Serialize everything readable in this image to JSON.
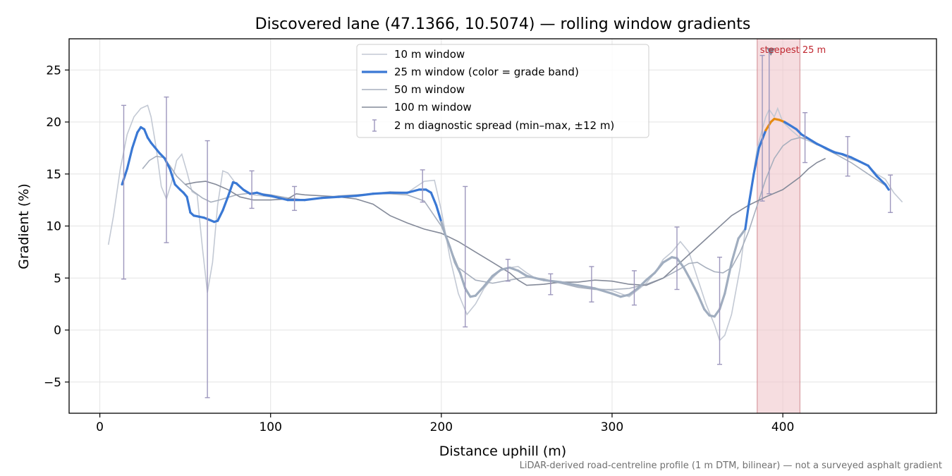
{
  "chart_data": {
    "type": "line",
    "title": "Discovered lane (47.1366, 10.5074) — rolling window gradients",
    "xlabel": "Distance uphill (m)",
    "ylabel": "Gradient (%)",
    "xlim": [
      -18,
      490
    ],
    "ylim": [
      -8,
      28
    ],
    "xticks": [
      0,
      100,
      200,
      300,
      400
    ],
    "xtick_labels": [
      "0",
      "100",
      "200",
      "300",
      "400"
    ],
    "yticks": [
      -5,
      0,
      5,
      10,
      15,
      20,
      25
    ],
    "ytick_labels": [
      "−5",
      "0",
      "5",
      "10",
      "15",
      "20",
      "25"
    ],
    "grid": true,
    "legend_position": "upper center",
    "note": "LiDAR-derived road-centreline profile (1 m DTM, bilinear) — not a surveyed asphalt gradient",
    "annotation": {
      "label": "steepest 25 m",
      "x_range": [
        385,
        410
      ],
      "marker_x": 393,
      "marker_y": 26.7
    },
    "colors": {
      "w10": "#c3c9d4",
      "w25": "#3a78d4",
      "w25_grey": "#a0adbf",
      "w25_steepest": "#e58a10",
      "w50": "#a7afbd",
      "w100": "#848a99",
      "errorbar": "#9d97bd",
      "band": "#f0c7cb",
      "band_edge": "#d28a90",
      "annotation": "#c0262f"
    },
    "series": [
      {
        "name": "10 m window",
        "x": [
          5,
          8,
          12,
          16,
          20,
          24,
          28,
          30,
          33,
          36,
          39,
          42,
          45,
          48,
          51,
          54,
          57,
          60,
          63,
          66,
          69,
          72,
          75,
          80,
          85,
          90,
          100,
          110,
          120,
          130,
          140,
          150,
          160,
          170,
          180,
          190,
          196,
          200,
          205,
          210,
          215,
          220,
          225,
          230,
          235,
          240,
          245,
          250,
          255,
          260,
          270,
          280,
          290,
          300,
          310,
          320,
          325,
          330,
          335,
          340,
          345,
          350,
          355,
          360,
          363,
          366,
          370,
          375,
          380,
          385,
          390,
          392,
          395,
          397,
          400,
          405,
          410,
          415,
          420,
          425,
          430,
          435,
          440,
          445,
          450,
          455,
          460,
          465,
          470
        ],
        "y": [
          8.2,
          11,
          15.5,
          18.8,
          20.5,
          21.3,
          21.6,
          20.5,
          17.5,
          13.8,
          12.6,
          14.2,
          16.3,
          16.9,
          15.2,
          13.3,
          13.0,
          8.0,
          3.6,
          6.5,
          12.0,
          15.3,
          15.1,
          14.0,
          13.3,
          13.0,
          12.8,
          12.6,
          12.5,
          12.7,
          12.8,
          12.9,
          13.1,
          13.3,
          13.2,
          14.3,
          14.4,
          11.5,
          7.0,
          3.5,
          1.5,
          2.5,
          4.0,
          5.0,
          5.8,
          6.0,
          6.1,
          5.5,
          5.0,
          4.8,
          4.5,
          4.2,
          4.0,
          3.8,
          3.2,
          4.5,
          5.5,
          6.8,
          7.5,
          8.5,
          7.5,
          5.0,
          2.5,
          0.5,
          -1.0,
          -0.5,
          1.5,
          6.0,
          12.0,
          17.5,
          20.5,
          21.2,
          20.5,
          21.3,
          20.0,
          19.2,
          18.5,
          18.2,
          17.8,
          17.5,
          17.2,
          16.8,
          16.4,
          16.2,
          15.8,
          15.0,
          14.5,
          13.2,
          12.3
        ]
      },
      {
        "name": "25 m window (color = grade band)",
        "x": [
          13,
          16,
          19,
          22,
          24,
          26,
          28,
          30,
          32,
          35,
          38,
          41,
          44,
          47,
          49,
          51,
          53,
          55,
          58,
          61,
          64,
          67,
          69,
          72,
          75,
          78,
          80,
          84,
          88,
          92,
          96,
          100,
          110,
          120,
          130,
          140,
          150,
          160,
          170,
          180,
          187,
          191,
          194,
          197,
          200,
          202,
          205,
          208,
          211,
          214,
          217,
          220,
          225,
          230,
          235,
          240,
          245,
          250,
          255,
          260,
          270,
          280,
          290,
          300,
          305,
          310,
          315,
          320,
          325,
          330,
          335,
          338,
          342,
          346,
          350,
          354,
          357,
          360,
          363,
          366,
          370,
          374,
          378,
          380,
          383,
          386,
          390,
          393,
          395,
          398,
          401,
          404,
          408,
          411,
          415,
          420,
          425,
          430,
          435,
          440,
          445,
          450,
          455,
          460,
          462
        ],
        "y": [
          14.0,
          15.5,
          17.5,
          19.0,
          19.5,
          19.3,
          18.5,
          18.0,
          17.6,
          17.0,
          16.5,
          15.5,
          14.0,
          13.5,
          13.2,
          12.8,
          11.3,
          11.0,
          10.9,
          10.8,
          10.6,
          10.4,
          10.5,
          11.5,
          12.8,
          14.2,
          14.1,
          13.5,
          13.1,
          13.2,
          13.0,
          12.9,
          12.5,
          12.5,
          12.7,
          12.8,
          12.9,
          13.1,
          13.2,
          13.2,
          13.5,
          13.5,
          13.2,
          12.0,
          10.4,
          9.3,
          8.0,
          6.5,
          5.5,
          4.0,
          3.2,
          3.3,
          4.2,
          5.2,
          5.8,
          6.0,
          5.7,
          5.2,
          5.0,
          4.8,
          4.6,
          4.3,
          4.0,
          3.5,
          3.2,
          3.4,
          4.0,
          4.8,
          5.5,
          6.5,
          7.0,
          6.9,
          6.0,
          4.8,
          3.5,
          2.0,
          1.4,
          1.3,
          2.0,
          3.5,
          6.5,
          8.8,
          9.7,
          12.0,
          15.0,
          17.5,
          19.2,
          20.0,
          20.3,
          20.2,
          20.0,
          19.7,
          19.3,
          18.8,
          18.4,
          17.9,
          17.5,
          17.1,
          16.9,
          16.6,
          16.2,
          15.8,
          14.8,
          14.0,
          13.5
        ]
      },
      {
        "name": "50 m window",
        "x": [
          25,
          29,
          33,
          37,
          41,
          45,
          50,
          55,
          60,
          65,
          70,
          80,
          90,
          100,
          110,
          120,
          130,
          140,
          150,
          160,
          170,
          180,
          190,
          200,
          205,
          210,
          220,
          230,
          240,
          250,
          260,
          270,
          280,
          290,
          300,
          310,
          320,
          330,
          340,
          345,
          350,
          355,
          360,
          365,
          370,
          375,
          380,
          385,
          390,
          395,
          400,
          405,
          410,
          415,
          420,
          425,
          430,
          440,
          450,
          460
        ],
        "y": [
          15.5,
          16.3,
          16.7,
          16.6,
          15.8,
          14.8,
          14.0,
          13.3,
          12.7,
          12.3,
          12.5,
          13.0,
          13.2,
          13.0,
          12.7,
          12.5,
          12.7,
          12.9,
          13.0,
          13.1,
          13.1,
          13.0,
          12.4,
          10.0,
          8.0,
          6.0,
          4.8,
          4.5,
          4.8,
          5.1,
          4.9,
          4.5,
          4.1,
          3.9,
          3.9,
          4.0,
          4.4,
          5.0,
          5.9,
          6.4,
          6.5,
          6.0,
          5.6,
          5.5,
          6.0,
          7.5,
          9.5,
          12.0,
          14.5,
          16.5,
          17.7,
          18.3,
          18.5,
          18.4,
          17.9,
          17.4,
          17.0,
          16.1,
          15.0,
          13.9
        ]
      },
      {
        "name": "100 m window",
        "x": [
          50,
          56,
          62,
          68,
          75,
          82,
          90,
          100,
          110,
          115,
          120,
          130,
          140,
          150,
          160,
          170,
          180,
          190,
          200,
          210,
          220,
          230,
          240,
          245,
          250,
          260,
          270,
          280,
          290,
          300,
          310,
          320,
          330,
          340,
          350,
          360,
          370,
          380,
          390,
          400,
          410,
          415,
          420,
          425
        ],
        "y": [
          14.0,
          14.2,
          14.3,
          14.0,
          13.5,
          12.8,
          12.5,
          12.5,
          12.6,
          13.1,
          13.0,
          12.9,
          12.8,
          12.6,
          12.1,
          11.0,
          10.3,
          9.7,
          9.3,
          8.5,
          7.5,
          6.5,
          5.5,
          4.8,
          4.3,
          4.4,
          4.6,
          4.6,
          4.8,
          4.7,
          4.4,
          4.3,
          5.0,
          6.5,
          8.0,
          9.5,
          11.0,
          12.0,
          12.8,
          13.5,
          14.7,
          15.5,
          16.1,
          16.5
        ]
      }
    ],
    "errorbars": {
      "name": "2 m diagnostic spread (min–max, ±12 m)",
      "x": [
        14,
        39,
        63,
        89,
        114,
        189,
        214,
        239,
        264,
        288,
        313,
        338,
        363,
        388,
        392,
        413,
        438,
        463
      ],
      "low": [
        4.9,
        8.4,
        -6.5,
        11.7,
        11.5,
        12.3,
        0.3,
        4.7,
        3.4,
        2.7,
        2.4,
        3.9,
        -3.3,
        12.4,
        13.1,
        16.1,
        14.8,
        11.3
      ],
      "high": [
        21.6,
        22.4,
        18.2,
        15.3,
        13.8,
        15.4,
        13.8,
        6.8,
        5.4,
        6.1,
        5.7,
        9.9,
        7.0,
        26.4,
        26.7,
        20.9,
        18.6,
        14.9
      ]
    }
  }
}
